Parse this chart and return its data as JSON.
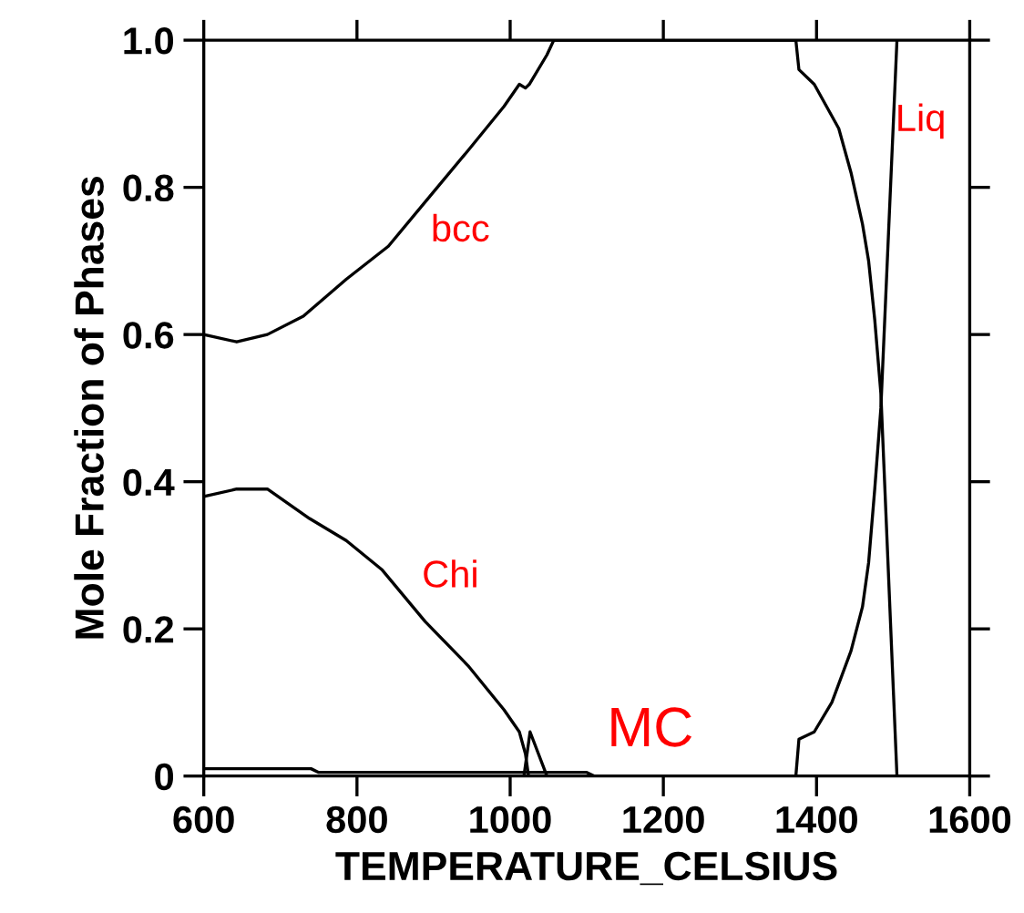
{
  "chart_data": {
    "type": "line",
    "xlabel": "TEMPERATURE_CELSIUS",
    "ylabel": "Mole Fraction of Phases",
    "xlim": [
      600,
      1600
    ],
    "xticks": [
      600,
      800,
      1000,
      1200,
      1400,
      1600
    ],
    "ylim": [
      0,
      1
    ],
    "yticks": [
      {
        "value": 0,
        "label": "0"
      },
      0.2,
      0.4,
      0.6,
      0.8,
      {
        "value": 1,
        "label": "1.0"
      }
    ],
    "grid": false,
    "marker": "none",
    "line_style": "solid",
    "series": [
      {
        "color": "#000000",
        "x": [
          600,
          643,
          683,
          730,
          786,
          841,
          897,
          945,
          992,
          1012,
          1020,
          1025,
          1048,
          1057,
          1373,
          1377,
          1397,
          1413,
          1429,
          1445,
          1460,
          1468,
          1476,
          1484,
          1505
        ],
        "values": [
          0.6,
          0.59,
          0.6,
          0.625,
          0.675,
          0.72,
          0.79,
          0.85,
          0.91,
          0.94,
          0.935,
          0.94,
          0.98,
          1.0,
          1.0,
          0.96,
          0.94,
          0.91,
          0.88,
          0.82,
          0.75,
          0.7,
          0.62,
          0.52,
          0
        ]
      },
      {
        "color": "#000000",
        "x": [
          600,
          643,
          683,
          738,
          786,
          833,
          889,
          945,
          992,
          1012,
          1020,
          1024
        ],
        "values": [
          0.38,
          0.39,
          0.39,
          0.35,
          0.32,
          0.28,
          0.21,
          0.15,
          0.09,
          0.06,
          0.03,
          0
        ]
      },
      {
        "color": "#000000",
        "x": [
          1018,
          1026,
          1048,
          1110,
          1373
        ],
        "values": [
          0,
          0.06,
          0,
          0,
          0
        ]
      },
      {
        "color": "#000000",
        "x": [
          600,
          740,
          750,
          1100,
          1110
        ],
        "values": [
          0.01,
          0.01,
          0.005,
          0.005,
          0
        ]
      },
      {
        "color": "#000000",
        "x": [
          1373,
          1377,
          1397,
          1420,
          1445,
          1460,
          1468,
          1476,
          1484,
          1505
        ],
        "values": [
          0,
          0.05,
          0.06,
          0.1,
          0.17,
          0.23,
          0.29,
          0.39,
          0.5,
          1.0
        ]
      }
    ],
    "annotations": [
      "bcc",
      "Chi",
      "MC",
      "Liq"
    ]
  }
}
